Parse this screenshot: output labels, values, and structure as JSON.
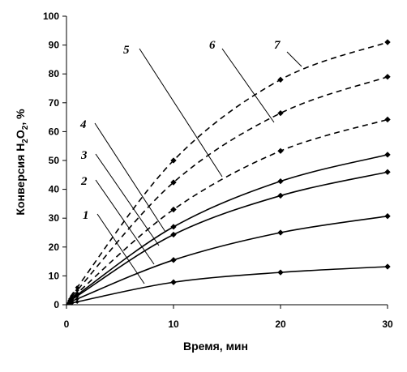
{
  "chart_data": {
    "type": "line",
    "title": "",
    "xlabel": "Время, мин",
    "ylabel_main": "Конверсия H",
    "ylabel_sub1": "2",
    "ylabel_mid": "O",
    "ylabel_sub2": "2",
    "ylabel_tail": ", %",
    "xlim": [
      0,
      30
    ],
    "ylim": [
      0,
      100
    ],
    "x_ticks": [
      0,
      10,
      20,
      30
    ],
    "y_ticks": [
      0,
      10,
      20,
      30,
      40,
      50,
      60,
      70,
      80,
      90,
      100
    ],
    "grid": false,
    "series": [
      {
        "name": "1",
        "style": "solid",
        "x": [
          0,
          0.5,
          1,
          10,
          20,
          30
        ],
        "y": [
          0,
          0.5,
          1,
          7.8,
          11.2,
          13.2
        ]
      },
      {
        "name": "2",
        "style": "solid",
        "x": [
          0,
          0.5,
          1,
          10,
          20,
          30
        ],
        "y": [
          0,
          1,
          2,
          15.5,
          25,
          30.7
        ]
      },
      {
        "name": "3",
        "style": "solid",
        "x": [
          0,
          0.5,
          1,
          10,
          20,
          30
        ],
        "y": [
          0,
          1.5,
          3,
          24.3,
          37.8,
          46
        ]
      },
      {
        "name": "4",
        "style": "solid",
        "x": [
          0,
          0.5,
          1,
          10,
          20,
          30
        ],
        "y": [
          0,
          1.8,
          3.4,
          27,
          42.8,
          52
        ]
      },
      {
        "name": "5",
        "style": "dashed",
        "x": [
          0,
          0.5,
          1,
          10,
          20,
          30
        ],
        "y": [
          0,
          2,
          4,
          33,
          53.3,
          64.2
        ]
      },
      {
        "name": "6",
        "style": "dashed",
        "x": [
          0,
          0.5,
          1,
          10,
          20,
          30
        ],
        "y": [
          0,
          2.5,
          5,
          42.4,
          66.4,
          79
        ]
      },
      {
        "name": "7",
        "style": "dashed",
        "x": [
          0,
          0.5,
          1,
          10,
          20,
          30
        ],
        "y": [
          0,
          3,
          6,
          50,
          78,
          91
        ]
      }
    ],
    "curve_labels": [
      {
        "text": "1",
        "series": "1"
      },
      {
        "text": "2",
        "series": "2"
      },
      {
        "text": "3",
        "series": "3"
      },
      {
        "text": "4",
        "series": "4"
      },
      {
        "text": "5",
        "series": "5"
      },
      {
        "text": "6",
        "series": "6"
      },
      {
        "text": "7",
        "series": "7"
      }
    ]
  }
}
